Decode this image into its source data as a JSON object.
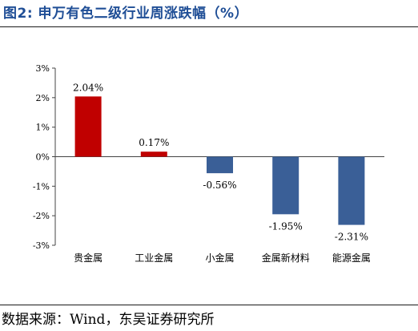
{
  "figure": {
    "title": "图2:  申万有色二级行业周涨跌幅（%）",
    "source": "数据来源：Wind，东吴证券研究所"
  },
  "colors": {
    "positive": "#c00000",
    "negative": "#3a5f97",
    "title": "#1f4e96"
  },
  "chart_data": {
    "type": "bar",
    "title": "",
    "xlabel": "",
    "ylabel": "",
    "categories": [
      "贵金属",
      "工业金属",
      "小金属",
      "金属新材料",
      "能源金属"
    ],
    "values": [
      2.04,
      0.17,
      -0.56,
      -1.95,
      -2.31
    ],
    "value_labels": [
      "2.04%",
      "0.17%",
      "-0.56%",
      "-1.95%",
      "-2.31%"
    ],
    "ylim": [
      -3,
      3
    ],
    "yticks": [
      3,
      2,
      1,
      0,
      -1,
      -2,
      -3
    ],
    "ytick_labels": [
      "3%",
      "2%",
      "1%",
      "0%",
      "-1%",
      "-2%",
      "-3%"
    ],
    "grid": false,
    "legend": "none"
  }
}
